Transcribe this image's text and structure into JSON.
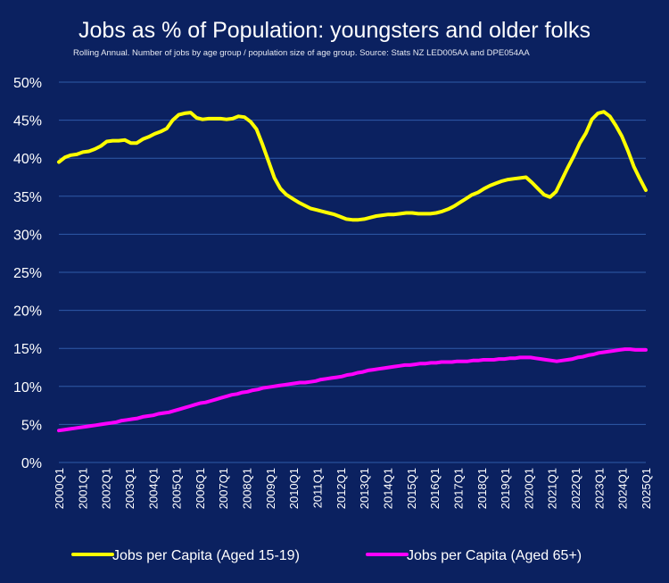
{
  "chart_data": {
    "type": "line",
    "title": "Jobs as % of Population: youngsters and older folks",
    "subtitle": "Rolling Annual. Number of jobs by age group / population size of age group. Source:  Stats NZ LED005AA and DPE054AA",
    "xlabel": "",
    "ylabel": "",
    "ylim": [
      0,
      50
    ],
    "grid": true,
    "legend": "bottom",
    "x_tick_labels": [
      "2000Q1",
      "2001Q1",
      "2002Q1",
      "2003Q1",
      "2004Q1",
      "2005Q1",
      "2006Q1",
      "2007Q1",
      "2008Q1",
      "2009Q1",
      "2010Q1",
      "2011Q1",
      "2012Q1",
      "2013Q1",
      "2014Q1",
      "2015Q1",
      "2016Q1",
      "2017Q1",
      "2018Q1",
      "2019Q1",
      "2020Q1",
      "2021Q1",
      "2022Q1",
      "2023Q1",
      "2024Q1",
      "2025Q1"
    ],
    "y_tick_labels": [
      "0%",
      "5%",
      "10%",
      "15%",
      "20%",
      "25%",
      "30%",
      "35%",
      "40%",
      "45%",
      "50%"
    ],
    "y_ticks": [
      0,
      5,
      10,
      15,
      20,
      25,
      30,
      35,
      40,
      45,
      50
    ],
    "series": [
      {
        "name": "Jobs per Capita (Aged 15-19)",
        "color": "#ffff00",
        "values": [
          39.5,
          40.1,
          40.4,
          40.5,
          40.8,
          40.9,
          41.2,
          41.6,
          42.2,
          42.3,
          42.3,
          42.4,
          42.0,
          42.0,
          42.5,
          42.8,
          43.2,
          43.5,
          43.9,
          45.0,
          45.7,
          45.9,
          46.0,
          45.3,
          45.1,
          45.2,
          45.2,
          45.2,
          45.1,
          45.2,
          45.5,
          45.4,
          44.8,
          43.8,
          41.8,
          39.6,
          37.4,
          36.0,
          35.2,
          34.7,
          34.2,
          33.8,
          33.4,
          33.2,
          33.0,
          32.8,
          32.6,
          32.3,
          32.0,
          31.9,
          31.9,
          32.0,
          32.2,
          32.4,
          32.5,
          32.6,
          32.6,
          32.7,
          32.8,
          32.8,
          32.7,
          32.7,
          32.7,
          32.8,
          33.0,
          33.3,
          33.7,
          34.2,
          34.7,
          35.2,
          35.5,
          36.0,
          36.4,
          36.7,
          37.0,
          37.2,
          37.3,
          37.4,
          37.5,
          36.8,
          36.0,
          35.2,
          34.9,
          35.6,
          37.2,
          38.8,
          40.3,
          42.0,
          43.3,
          45.1,
          45.9,
          46.1,
          45.5,
          44.3,
          42.9,
          41.0,
          38.9,
          37.3,
          35.8
        ]
      },
      {
        "name": "Jobs per Capita (Aged 65+)",
        "color": "#ff00ff",
        "values": [
          4.2,
          4.3,
          4.4,
          4.5,
          4.6,
          4.7,
          4.8,
          4.9,
          5.0,
          5.1,
          5.2,
          5.3,
          5.5,
          5.6,
          5.7,
          5.8,
          6.0,
          6.1,
          6.2,
          6.4,
          6.5,
          6.6,
          6.8,
          7.0,
          7.2,
          7.4,
          7.6,
          7.8,
          7.9,
          8.1,
          8.3,
          8.5,
          8.7,
          8.9,
          9.0,
          9.2,
          9.3,
          9.5,
          9.6,
          9.8,
          9.9,
          10.0,
          10.1,
          10.2,
          10.3,
          10.4,
          10.5,
          10.5,
          10.6,
          10.7,
          10.9,
          11.0,
          11.1,
          11.2,
          11.3,
          11.5,
          11.6,
          11.8,
          11.9,
          12.1,
          12.2,
          12.3,
          12.4,
          12.5,
          12.6,
          12.7,
          12.8,
          12.8,
          12.9,
          13.0,
          13.0,
          13.1,
          13.1,
          13.2,
          13.2,
          13.2,
          13.3,
          13.3,
          13.3,
          13.4,
          13.4,
          13.5,
          13.5,
          13.5,
          13.6,
          13.6,
          13.7,
          13.7,
          13.8,
          13.8,
          13.8,
          13.7,
          13.6,
          13.5,
          13.4,
          13.3,
          13.4,
          13.5,
          13.6,
          13.8,
          13.9,
          14.1,
          14.2,
          14.4,
          14.5,
          14.6,
          14.7,
          14.8,
          14.9,
          14.9,
          14.8,
          14.8,
          14.8
        ]
      }
    ]
  }
}
